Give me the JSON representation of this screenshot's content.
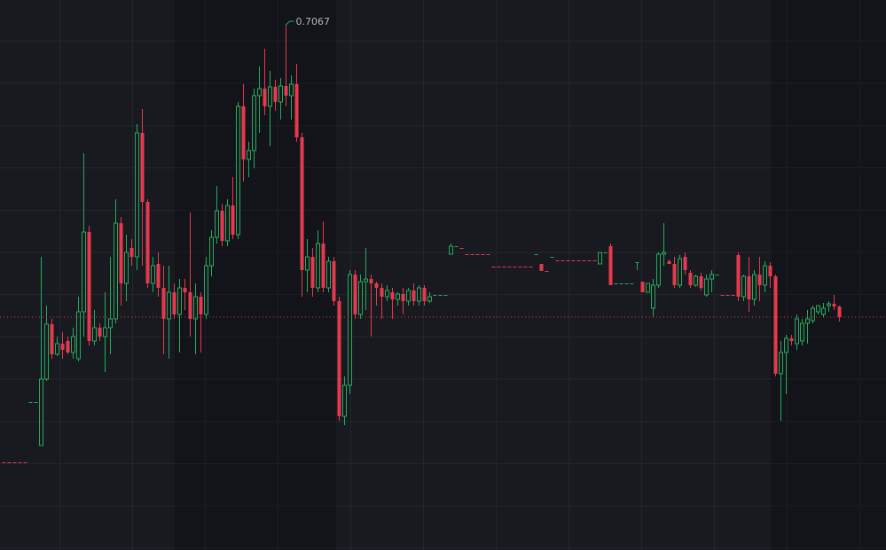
{
  "chart_data": {
    "type": "candlestick",
    "ylim": [
      0.5881,
      0.7123
    ],
    "up_color": "#22ab5f",
    "down_color": "#e5394d",
    "high_label": "0.7067",
    "last_price_line": true,
    "open": [
      0.6079,
      0.6079,
      0.6079,
      0.6079,
      0.6079,
      0.6215,
      0.6215,
      0.6117,
      0.6267,
      0.6391,
      0.6323,
      0.6347,
      0.6353,
      0.6327,
      0.6313,
      0.6419,
      0.6599,
      0.6353,
      0.6383,
      0.6363,
      0.6383,
      0.6403,
      0.6619,
      0.6483,
      0.6563,
      0.6543,
      0.6823,
      0.6667,
      0.6483,
      0.6527,
      0.6473,
      0.6403,
      0.6463,
      0.6413,
      0.6473,
      0.6463,
      0.6403,
      0.6453,
      0.6413,
      0.6523,
      0.6587,
      0.6647,
      0.6579,
      0.6659,
      0.6593,
      0.6883,
      0.6763,
      0.6783,
      0.6907,
      0.6923,
      0.6883,
      0.6927,
      0.6893,
      0.6929,
      0.6907,
      0.6933,
      0.6813,
      0.6513,
      0.6543,
      0.6473,
      0.6573,
      0.6473,
      0.6533,
      0.6443,
      0.6183,
      0.6253,
      0.6503,
      0.6413,
      0.6487,
      0.6493,
      0.6483,
      0.6473,
      0.6453,
      0.6463,
      0.6447,
      0.6459,
      0.6443,
      0.6467,
      0.6443,
      0.6473,
      0.6443,
      0.6457,
      0.6457,
      0.6457,
      0.6549,
      0.6567,
      0.6563,
      0.6549,
      0.6549,
      0.6549,
      0.6549,
      0.6549,
      0.6521,
      0.6521,
      0.6521,
      0.6521,
      0.6521,
      0.6521,
      0.6521,
      0.6521,
      0.6549,
      0.6527,
      0.6511,
      0.6543,
      0.6535,
      0.6535,
      0.6535,
      0.6535,
      0.6535,
      0.6535,
      0.6535,
      0.6535,
      0.6527,
      0.6553,
      0.6567,
      0.6483,
      0.6483,
      0.6483,
      0.6483,
      0.6531,
      0.6487,
      0.6463,
      0.6427,
      0.6479,
      0.6549,
      0.6533,
      0.6527,
      0.6479,
      0.6543,
      0.6507,
      0.6479,
      0.6499,
      0.6457,
      0.6493,
      0.6503,
      0.6457,
      0.6457,
      0.6457,
      0.6547,
      0.6453,
      0.6499,
      0.6447,
      0.6503,
      0.6479,
      0.6523,
      0.6499,
      0.6279,
      0.6327,
      0.6359,
      0.6347,
      0.6353,
      0.6393,
      0.6399,
      0.6419,
      0.6413,
      0.6433,
      0.6437,
      0.6431
    ],
    "high": [
      0.6079,
      0.6079,
      0.6079,
      0.6079,
      0.6079,
      0.6215,
      0.6215,
      0.6543,
      0.6433,
      0.6403,
      0.6363,
      0.6373,
      0.6363,
      0.6383,
      0.6453,
      0.6777,
      0.6613,
      0.6423,
      0.6393,
      0.6463,
      0.6543,
      0.6673,
      0.6633,
      0.6593,
      0.6583,
      0.6843,
      0.6877,
      0.6673,
      0.6543,
      0.6553,
      0.6523,
      0.6523,
      0.6483,
      0.6493,
      0.6493,
      0.6643,
      0.6483,
      0.6463,
      0.6543,
      0.6603,
      0.6703,
      0.6663,
      0.6673,
      0.6723,
      0.6893,
      0.6933,
      0.6803,
      0.6923,
      0.6973,
      0.7013,
      0.6963,
      0.6943,
      0.6947,
      0.7067,
      0.6953,
      0.6979,
      0.6823,
      0.6583,
      0.6563,
      0.6603,
      0.6623,
      0.6543,
      0.6543,
      0.6453,
      0.6273,
      0.6513,
      0.6513,
      0.6503,
      0.6563,
      0.6503,
      0.6487,
      0.6483,
      0.6479,
      0.6473,
      0.6463,
      0.6473,
      0.6473,
      0.6483,
      0.6479,
      0.6479,
      0.6463,
      0.6457,
      0.6457,
      0.6457,
      0.6573,
      0.6567,
      0.6563,
      0.6549,
      0.6549,
      0.6549,
      0.6549,
      0.6549,
      0.6521,
      0.6521,
      0.6521,
      0.6521,
      0.6521,
      0.6521,
      0.6521,
      0.6521,
      0.6549,
      0.6527,
      0.6511,
      0.6543,
      0.6535,
      0.6535,
      0.6535,
      0.6535,
      0.6535,
      0.6535,
      0.6535,
      0.6535,
      0.6553,
      0.6553,
      0.6573,
      0.6483,
      0.6483,
      0.6483,
      0.6483,
      0.6531,
      0.6487,
      0.6483,
      0.6493,
      0.6553,
      0.6619,
      0.6537,
      0.6543,
      0.6547,
      0.6553,
      0.6513,
      0.6503,
      0.6507,
      0.6503,
      0.6513,
      0.6503,
      0.6457,
      0.6457,
      0.6457,
      0.6553,
      0.6503,
      0.6543,
      0.6513,
      0.6543,
      0.6533,
      0.6531,
      0.6503,
      0.6353,
      0.6367,
      0.6367,
      0.6413,
      0.6403,
      0.6423,
      0.6433,
      0.6433,
      0.6439,
      0.6443,
      0.6457,
      0.6433
    ],
    "low": [
      0.6079,
      0.6079,
      0.6079,
      0.6079,
      0.6079,
      0.6215,
      0.6215,
      0.6117,
      0.6263,
      0.6313,
      0.6319,
      0.6313,
      0.6323,
      0.6313,
      0.6307,
      0.6363,
      0.6343,
      0.6343,
      0.6353,
      0.6283,
      0.6323,
      0.6393,
      0.6433,
      0.6443,
      0.6523,
      0.6513,
      0.6523,
      0.6473,
      0.6463,
      0.6453,
      0.6323,
      0.6313,
      0.6403,
      0.6327,
      0.6423,
      0.6363,
      0.6323,
      0.6327,
      0.6403,
      0.6499,
      0.6573,
      0.6567,
      0.6567,
      0.6583,
      0.6583,
      0.6713,
      0.6723,
      0.6743,
      0.6823,
      0.6863,
      0.6793,
      0.6873,
      0.6853,
      0.6883,
      0.6853,
      0.6803,
      0.6453,
      0.6463,
      0.6453,
      0.6463,
      0.6463,
      0.6463,
      0.6433,
      0.6173,
      0.6163,
      0.6233,
      0.6403,
      0.6403,
      0.6423,
      0.6363,
      0.6433,
      0.6403,
      0.6443,
      0.6403,
      0.6433,
      0.6413,
      0.6433,
      0.6433,
      0.6433,
      0.6433,
      0.6439,
      0.6457,
      0.6457,
      0.6457,
      0.6549,
      0.6567,
      0.6563,
      0.6549,
      0.6549,
      0.6549,
      0.6549,
      0.6549,
      0.6521,
      0.6521,
      0.6521,
      0.6521,
      0.6521,
      0.6521,
      0.6521,
      0.6521,
      0.6549,
      0.6511,
      0.6511,
      0.6543,
      0.6535,
      0.6535,
      0.6535,
      0.6535,
      0.6535,
      0.6535,
      0.6535,
      0.6535,
      0.6527,
      0.6553,
      0.6479,
      0.6483,
      0.6483,
      0.6483,
      0.6483,
      0.6513,
      0.6463,
      0.6463,
      0.6407,
      0.6473,
      0.6523,
      0.6527,
      0.6473,
      0.6473,
      0.6503,
      0.6473,
      0.6475,
      0.6467,
      0.6453,
      0.6463,
      0.6503,
      0.6457,
      0.6457,
      0.6457,
      0.6443,
      0.6443,
      0.6419,
      0.6433,
      0.6443,
      0.6463,
      0.6473,
      0.6273,
      0.6173,
      0.6233,
      0.6343,
      0.6333,
      0.6343,
      0.6347,
      0.6393,
      0.6413,
      0.6407,
      0.6419,
      0.6423,
      0.6397
    ],
    "close": [
      0.6079,
      0.6079,
      0.6079,
      0.6079,
      0.6079,
      0.6215,
      0.6215,
      0.6267,
      0.6391,
      0.6323,
      0.6347,
      0.6333,
      0.6327,
      0.6363,
      0.6419,
      0.6599,
      0.6353,
      0.6383,
      0.6363,
      0.6383,
      0.6403,
      0.6619,
      0.6483,
      0.6553,
      0.6543,
      0.6823,
      0.6667,
      0.6483,
      0.6523,
      0.6473,
      0.6403,
      0.6463,
      0.6413,
      0.6473,
      0.6463,
      0.6403,
      0.6453,
      0.6413,
      0.6523,
      0.6587,
      0.6647,
      0.6579,
      0.6659,
      0.6593,
      0.6883,
      0.6763,
      0.6783,
      0.6907,
      0.6923,
      0.6883,
      0.6927,
      0.6893,
      0.6929,
      0.6907,
      0.6933,
      0.6813,
      0.6513,
      0.6543,
      0.6473,
      0.6573,
      0.6473,
      0.6533,
      0.6443,
      0.6183,
      0.6253,
      0.6503,
      0.6413,
      0.6487,
      0.6493,
      0.6483,
      0.6473,
      0.6453,
      0.6467,
      0.6447,
      0.6459,
      0.6443,
      0.6467,
      0.6443,
      0.6473,
      0.6443,
      0.6453,
      0.6457,
      0.6457,
      0.6457,
      0.6567,
      0.6567,
      0.6563,
      0.6549,
      0.6549,
      0.6549,
      0.6549,
      0.6549,
      0.6521,
      0.6521,
      0.6521,
      0.6521,
      0.6521,
      0.6521,
      0.6521,
      0.6521,
      0.6549,
      0.6511,
      0.6511,
      0.6543,
      0.6535,
      0.6535,
      0.6535,
      0.6535,
      0.6535,
      0.6535,
      0.6535,
      0.6535,
      0.6553,
      0.6553,
      0.6479,
      0.6483,
      0.6483,
      0.6483,
      0.6483,
      0.6531,
      0.6463,
      0.6483,
      0.6479,
      0.6549,
      0.6553,
      0.6527,
      0.6479,
      0.6539,
      0.6513,
      0.6479,
      0.6499,
      0.6473,
      0.6493,
      0.6503,
      0.6503,
      0.6457,
      0.6457,
      0.6457,
      0.6453,
      0.6499,
      0.6447,
      0.6503,
      0.6479,
      0.6523,
      0.6499,
      0.6279,
      0.6327,
      0.6359,
      0.6353,
      0.6403,
      0.6393,
      0.6403,
      0.6427,
      0.6433,
      0.6427,
      0.6437,
      0.6431,
      0.6407
    ]
  }
}
